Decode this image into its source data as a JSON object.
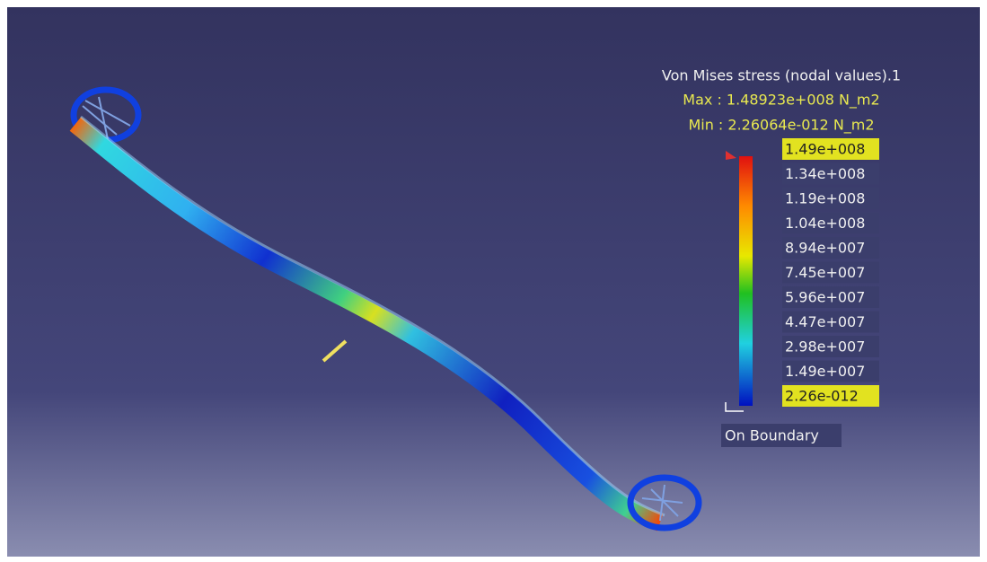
{
  "legend": {
    "title": "Von Mises stress (nodal values).1",
    "max": "Max : 1.48923e+008 N_m2",
    "min": "Min : 2.26064e-012 N_m2",
    "labels": [
      "1.49e+008",
      "1.34e+008",
      "1.19e+008",
      "1.04e+008",
      "8.94e+007",
      "7.45e+007",
      "5.96e+007",
      "4.47e+007",
      "2.98e+007",
      "1.49e+007",
      "2.26e-012"
    ],
    "boundary": "On Boundary"
  }
}
